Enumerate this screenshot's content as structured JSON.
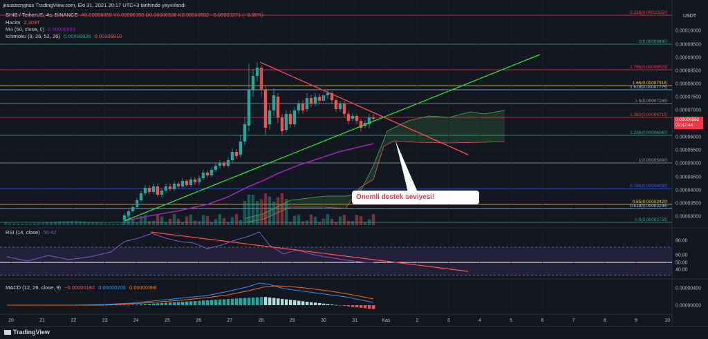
{
  "header": {
    "title": "jesusscryptos TradingView.com, Eki 31, 2021 20:17 UTC+3 tarihinde yayınlandı"
  },
  "legend": {
    "symbol": "SHIB / TetherUS, 4s, BINANCE",
    "ohlc": "A0.00006859  Y0.00006950  D0.00006538  K0.00006592  −0.00000271 (−3.95%)",
    "volume_label": "Hacim",
    "volume_value": "2.309T",
    "ma_label": "MA (50, close, 0)",
    "ma_value": "0.00005693",
    "ichimoku_label": "Ichimoku (9, 26, 52, 26)",
    "ichimoku_v1": "0.00006926",
    "ichimoku_v2": "0.00005810"
  },
  "currency": "USDT",
  "price_axis": [
    {
      "label": "0.00010000",
      "y": 44
    },
    {
      "label": "0.00009500",
      "y": 64
    },
    {
      "label": "0.00009000",
      "y": 83
    },
    {
      "label": "0.00008500",
      "y": 102
    },
    {
      "label": "0.00008000",
      "y": 121
    },
    {
      "label": "0.00007500",
      "y": 140
    },
    {
      "label": "0.00007000",
      "y": 159
    },
    {
      "label": "0.00006500",
      "y": 178
    },
    {
      "label": "0.00006000",
      "y": 198
    },
    {
      "label": "0.00005500",
      "y": 217
    },
    {
      "label": "0.00005000",
      "y": 236
    },
    {
      "label": "0.00004500",
      "y": 256
    },
    {
      "label": "0.00004000",
      "y": 275
    },
    {
      "label": "0.00003500",
      "y": 294
    },
    {
      "label": "0.00003000",
      "y": 313
    }
  ],
  "fib_levels": [
    {
      "label": "2.236(0.00010550)",
      "y": 22,
      "color": "#f23645"
    },
    {
      "label": "2(0.00009490)",
      "y": 64,
      "color": "#26a69a"
    },
    {
      "label": "1.786(0.00008529)",
      "y": 101,
      "color": "#f23645"
    },
    {
      "label": "1.65(0.00007918)",
      "y": 124,
      "color": "#fbc02d"
    },
    {
      "label": "1.618(0.00007775)",
      "y": 130,
      "color": "#90caf9"
    },
    {
      "label": "1.5(0.00007245)",
      "y": 150,
      "color": "#9598a1"
    },
    {
      "label": "1.382(0.00006715)",
      "y": 170,
      "color": "#f23645"
    },
    {
      "label": "1.236(0.00006060)",
      "y": 196,
      "color": "#26a69a"
    },
    {
      "label": "1(0.00005000)",
      "y": 236,
      "color": "#9598a1"
    },
    {
      "label": "0.786(0.00004039)",
      "y": 273,
      "color": "#2962ff"
    },
    {
      "label": "0.65(0.00003429)",
      "y": 296,
      "color": "#fbc02d"
    },
    {
      "label": "0.618(0.00003286)",
      "y": 302,
      "color": "#90caf9"
    },
    {
      "label": "0.5(0.00002755)",
      "y": 322,
      "color": "#26a69a"
    }
  ],
  "price_tag": {
    "price": "0.00006592",
    "countdown": "02:42:44"
  },
  "callout": "Önemli destek seviyesi!",
  "rsi": {
    "label": "RSI (14, close)",
    "value": "50.42",
    "ticks": [
      {
        "label": "80.00",
        "y": 348
      },
      {
        "label": "60.00",
        "y": 369
      },
      {
        "label": "50.00",
        "y": 380
      },
      {
        "label": "40.00",
        "y": 390
      }
    ]
  },
  "macd": {
    "label": "MACD (12, 26, close, 9)",
    "v1": "−0.00000182",
    "v2": "0.00000206",
    "v3": "0.00000388",
    "ticks": [
      {
        "label": "0.00000400",
        "y": 417
      },
      {
        "label": "0.00000000",
        "y": 442
      }
    ]
  },
  "time_axis": [
    "20",
    "21",
    "22",
    "23",
    "24",
    "25",
    "26",
    "27",
    "28",
    "29",
    "30",
    "31",
    "Kas",
    "2",
    "3",
    "4",
    "5",
    "6",
    "7",
    "8",
    "9",
    "10"
  ],
  "footer_logo": "TradingView",
  "colors": {
    "bull": "#26a69a",
    "bear": "#ef5350",
    "ma": "#9c27b0",
    "trend_up": "#2ee62e",
    "trend_down": "#ff4d4d"
  }
}
